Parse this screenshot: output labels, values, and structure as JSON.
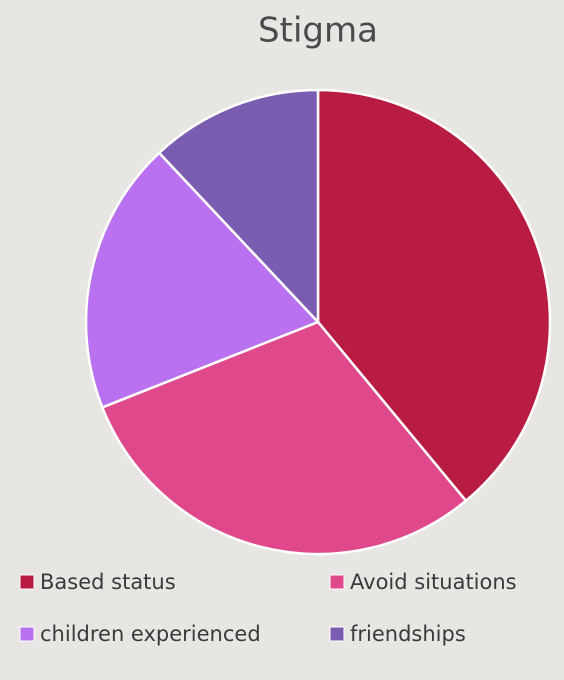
{
  "chart_data": {
    "type": "pie",
    "title": "Stigma",
    "categories": [
      "Based status",
      "Avoid situations",
      "children experienced",
      "friendships"
    ],
    "values": [
      39,
      30,
      19,
      12
    ],
    "colors": [
      "#b91c42",
      "#e0488c",
      "#b971f0",
      "#7a5db0"
    ],
    "legend": "bottom"
  }
}
